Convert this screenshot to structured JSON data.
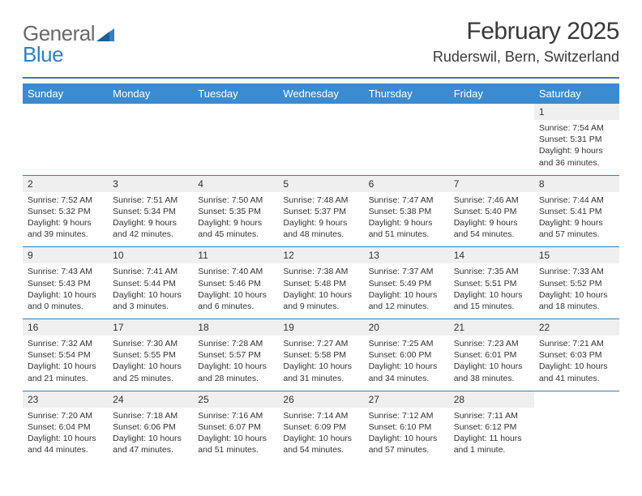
{
  "logo": {
    "word1": "General",
    "word2": "Blue"
  },
  "title": "February 2025",
  "subtitle": "Ruderswil, Bern, Switzerland",
  "colors": {
    "header_bar": "#3b8bd0",
    "divider": "#2f7fc3",
    "daynum_bg": "#efefef",
    "text": "#333333",
    "logo_gray": "#6a6a6a",
    "logo_blue": "#2f7fc3",
    "background": "#ffffff"
  },
  "typography": {
    "title_fontsize": 30,
    "subtitle_fontsize": 18,
    "header_cell_fontsize": 13,
    "daynum_fontsize": 12,
    "detail_fontsize": 10.5
  },
  "day_headers": [
    "Sunday",
    "Monday",
    "Tuesday",
    "Wednesday",
    "Thursday",
    "Friday",
    "Saturday"
  ],
  "weeks": [
    [
      null,
      null,
      null,
      null,
      null,
      null,
      {
        "n": "1",
        "sunrise": "Sunrise: 7:54 AM",
        "sunset": "Sunset: 5:31 PM",
        "daylight": "Daylight: 9 hours and 36 minutes."
      }
    ],
    [
      {
        "n": "2",
        "sunrise": "Sunrise: 7:52 AM",
        "sunset": "Sunset: 5:32 PM",
        "daylight": "Daylight: 9 hours and 39 minutes."
      },
      {
        "n": "3",
        "sunrise": "Sunrise: 7:51 AM",
        "sunset": "Sunset: 5:34 PM",
        "daylight": "Daylight: 9 hours and 42 minutes."
      },
      {
        "n": "4",
        "sunrise": "Sunrise: 7:50 AM",
        "sunset": "Sunset: 5:35 PM",
        "daylight": "Daylight: 9 hours and 45 minutes."
      },
      {
        "n": "5",
        "sunrise": "Sunrise: 7:48 AM",
        "sunset": "Sunset: 5:37 PM",
        "daylight": "Daylight: 9 hours and 48 minutes."
      },
      {
        "n": "6",
        "sunrise": "Sunrise: 7:47 AM",
        "sunset": "Sunset: 5:38 PM",
        "daylight": "Daylight: 9 hours and 51 minutes."
      },
      {
        "n": "7",
        "sunrise": "Sunrise: 7:46 AM",
        "sunset": "Sunset: 5:40 PM",
        "daylight": "Daylight: 9 hours and 54 minutes."
      },
      {
        "n": "8",
        "sunrise": "Sunrise: 7:44 AM",
        "sunset": "Sunset: 5:41 PM",
        "daylight": "Daylight: 9 hours and 57 minutes."
      }
    ],
    [
      {
        "n": "9",
        "sunrise": "Sunrise: 7:43 AM",
        "sunset": "Sunset: 5:43 PM",
        "daylight": "Daylight: 10 hours and 0 minutes."
      },
      {
        "n": "10",
        "sunrise": "Sunrise: 7:41 AM",
        "sunset": "Sunset: 5:44 PM",
        "daylight": "Daylight: 10 hours and 3 minutes."
      },
      {
        "n": "11",
        "sunrise": "Sunrise: 7:40 AM",
        "sunset": "Sunset: 5:46 PM",
        "daylight": "Daylight: 10 hours and 6 minutes."
      },
      {
        "n": "12",
        "sunrise": "Sunrise: 7:38 AM",
        "sunset": "Sunset: 5:48 PM",
        "daylight": "Daylight: 10 hours and 9 minutes."
      },
      {
        "n": "13",
        "sunrise": "Sunrise: 7:37 AM",
        "sunset": "Sunset: 5:49 PM",
        "daylight": "Daylight: 10 hours and 12 minutes."
      },
      {
        "n": "14",
        "sunrise": "Sunrise: 7:35 AM",
        "sunset": "Sunset: 5:51 PM",
        "daylight": "Daylight: 10 hours and 15 minutes."
      },
      {
        "n": "15",
        "sunrise": "Sunrise: 7:33 AM",
        "sunset": "Sunset: 5:52 PM",
        "daylight": "Daylight: 10 hours and 18 minutes."
      }
    ],
    [
      {
        "n": "16",
        "sunrise": "Sunrise: 7:32 AM",
        "sunset": "Sunset: 5:54 PM",
        "daylight": "Daylight: 10 hours and 21 minutes."
      },
      {
        "n": "17",
        "sunrise": "Sunrise: 7:30 AM",
        "sunset": "Sunset: 5:55 PM",
        "daylight": "Daylight: 10 hours and 25 minutes."
      },
      {
        "n": "18",
        "sunrise": "Sunrise: 7:28 AM",
        "sunset": "Sunset: 5:57 PM",
        "daylight": "Daylight: 10 hours and 28 minutes."
      },
      {
        "n": "19",
        "sunrise": "Sunrise: 7:27 AM",
        "sunset": "Sunset: 5:58 PM",
        "daylight": "Daylight: 10 hours and 31 minutes."
      },
      {
        "n": "20",
        "sunrise": "Sunrise: 7:25 AM",
        "sunset": "Sunset: 6:00 PM",
        "daylight": "Daylight: 10 hours and 34 minutes."
      },
      {
        "n": "21",
        "sunrise": "Sunrise: 7:23 AM",
        "sunset": "Sunset: 6:01 PM",
        "daylight": "Daylight: 10 hours and 38 minutes."
      },
      {
        "n": "22",
        "sunrise": "Sunrise: 7:21 AM",
        "sunset": "Sunset: 6:03 PM",
        "daylight": "Daylight: 10 hours and 41 minutes."
      }
    ],
    [
      {
        "n": "23",
        "sunrise": "Sunrise: 7:20 AM",
        "sunset": "Sunset: 6:04 PM",
        "daylight": "Daylight: 10 hours and 44 minutes."
      },
      {
        "n": "24",
        "sunrise": "Sunrise: 7:18 AM",
        "sunset": "Sunset: 6:06 PM",
        "daylight": "Daylight: 10 hours and 47 minutes."
      },
      {
        "n": "25",
        "sunrise": "Sunrise: 7:16 AM",
        "sunset": "Sunset: 6:07 PM",
        "daylight": "Daylight: 10 hours and 51 minutes."
      },
      {
        "n": "26",
        "sunrise": "Sunrise: 7:14 AM",
        "sunset": "Sunset: 6:09 PM",
        "daylight": "Daylight: 10 hours and 54 minutes."
      },
      {
        "n": "27",
        "sunrise": "Sunrise: 7:12 AM",
        "sunset": "Sunset: 6:10 PM",
        "daylight": "Daylight: 10 hours and 57 minutes."
      },
      {
        "n": "28",
        "sunrise": "Sunrise: 7:11 AM",
        "sunset": "Sunset: 6:12 PM",
        "daylight": "Daylight: 11 hours and 1 minute."
      },
      null
    ]
  ]
}
